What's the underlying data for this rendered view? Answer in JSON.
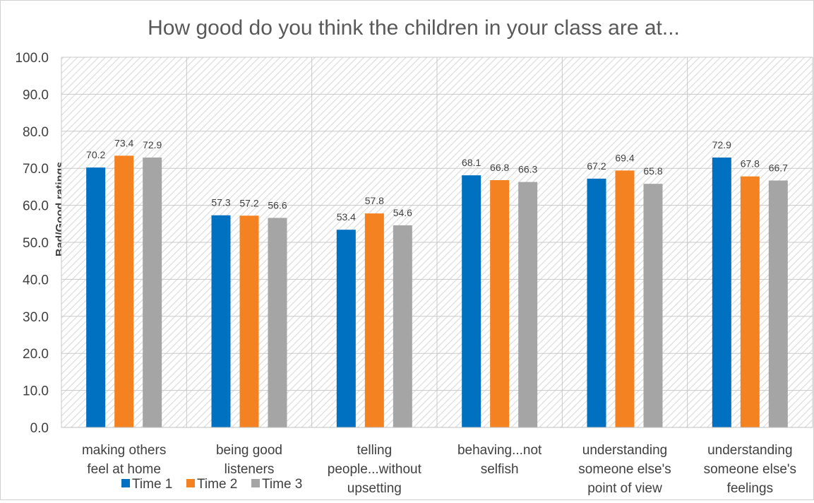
{
  "chart_data": {
    "type": "bar",
    "title": "How good do you think the children in your class are at...",
    "ylabel": "Bad/Good ratings",
    "xlabel": "",
    "ylim": [
      0,
      100
    ],
    "yticks": [
      "0.0",
      "10.0",
      "20.0",
      "30.0",
      "40.0",
      "50.0",
      "60.0",
      "70.0",
      "80.0",
      "90.0",
      "100.0"
    ],
    "categories": [
      [
        "making others",
        "feel at home"
      ],
      [
        "being good",
        "listeners"
      ],
      [
        "telling",
        "people...without",
        "upsetting"
      ],
      [
        "behaving...not",
        "selfish"
      ],
      [
        "understanding",
        "someone else's",
        "point of view"
      ],
      [
        "understanding",
        "someone else's",
        "feelings"
      ]
    ],
    "series": [
      {
        "name": "Time 1",
        "color": "#0070C0",
        "values": [
          70.2,
          57.3,
          53.4,
          68.1,
          67.2,
          72.9
        ]
      },
      {
        "name": "Time 2",
        "color": "#F58220",
        "values": [
          73.4,
          57.2,
          57.8,
          66.8,
          69.4,
          67.8
        ]
      },
      {
        "name": "Time 3",
        "color": "#A5A5A5",
        "values": [
          72.9,
          56.6,
          54.6,
          66.3,
          65.8,
          66.7
        ]
      }
    ],
    "data_labels": true,
    "grid": true,
    "legend": "bottom-left",
    "background": "hatched"
  }
}
